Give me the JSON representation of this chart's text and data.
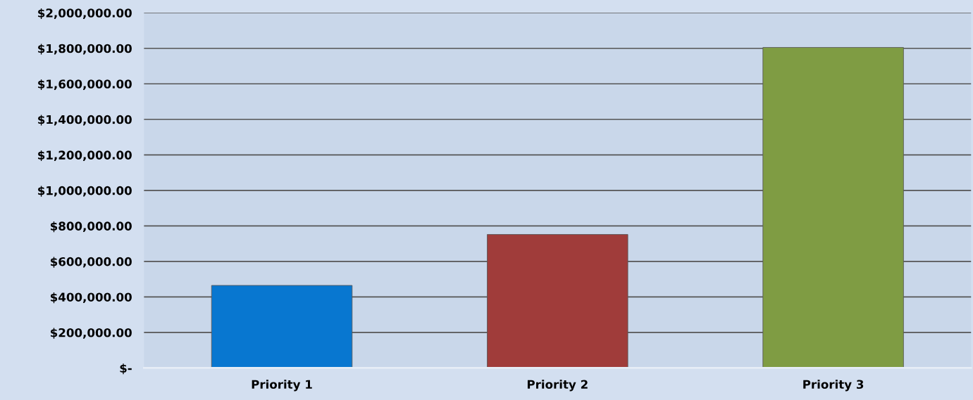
{
  "chart_data": {
    "type": "bar",
    "categories": [
      "Priority 1",
      "Priority 2",
      "Priority 3"
    ],
    "values": [
      465000,
      752000,
      1805000
    ],
    "colors": [
      "#0877d0",
      "#a03c3a",
      "#7f9c43"
    ],
    "ylim": [
      0,
      2000000
    ],
    "yticks": [
      {
        "value": 0,
        "label": "$-"
      },
      {
        "value": 200000,
        "label": "$200,000.00"
      },
      {
        "value": 400000,
        "label": "$400,000.00"
      },
      {
        "value": 600000,
        "label": "$600,000.00"
      },
      {
        "value": 800000,
        "label": "$800,000.00"
      },
      {
        "value": 1000000,
        "label": "$1,000,000.00"
      },
      {
        "value": 1200000,
        "label": "$1,200,000.00"
      },
      {
        "value": 1400000,
        "label": "$1,400,000.00"
      },
      {
        "value": 1600000,
        "label": "$1,600,000.00"
      },
      {
        "value": 1800000,
        "label": "$1,800,000.00"
      },
      {
        "value": 2000000,
        "label": "$2,000,000.00"
      }
    ],
    "grid": "y"
  }
}
